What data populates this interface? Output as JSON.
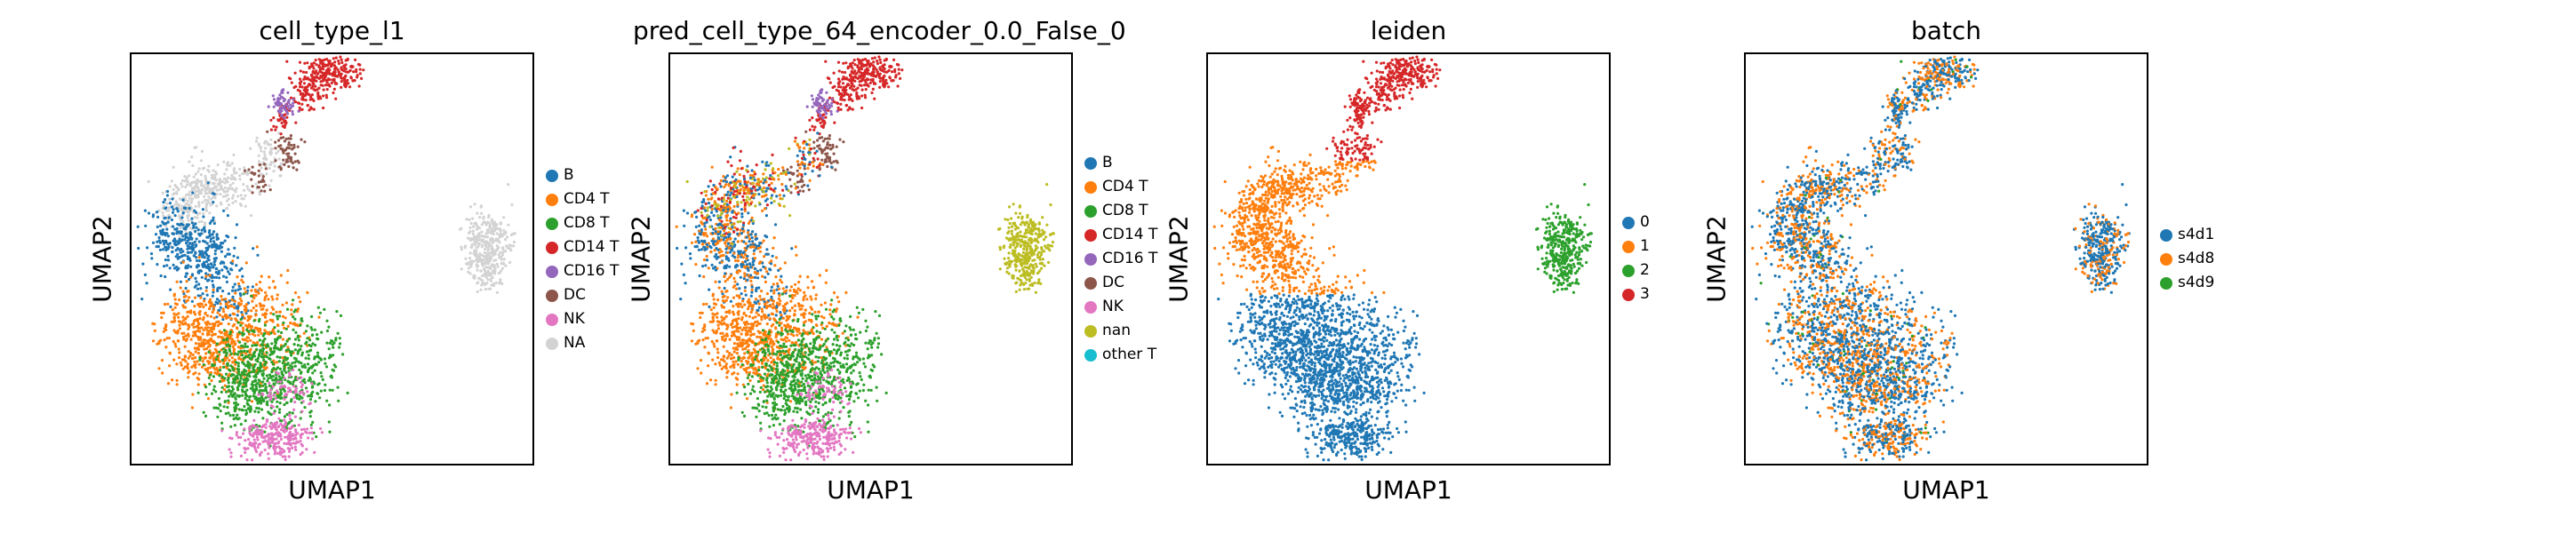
{
  "chart_data": [
    {
      "type": "scatter",
      "title": "cell_type_l1",
      "xlabel": "UMAP1",
      "ylabel": "UMAP2",
      "legend_position": "right",
      "series": [
        {
          "name": "B",
          "color": "#1f77b4"
        },
        {
          "name": "CD4 T",
          "color": "#ff7f0e"
        },
        {
          "name": "CD8 T",
          "color": "#2ca02c"
        },
        {
          "name": "CD14 T",
          "color": "#d62728"
        },
        {
          "name": "CD16 T",
          "color": "#9467bd"
        },
        {
          "name": "DC",
          "color": "#8c564b"
        },
        {
          "name": "NK",
          "color": "#e377c2"
        },
        {
          "name": "NA",
          "color": "#d3d3d3"
        }
      ]
    },
    {
      "type": "scatter",
      "title": "pred_cell_type_64_encoder_0.0_False_0",
      "xlabel": "UMAP1",
      "ylabel": "UMAP2",
      "legend_position": "right",
      "series": [
        {
          "name": "B",
          "color": "#1f77b4"
        },
        {
          "name": "CD4 T",
          "color": "#ff7f0e"
        },
        {
          "name": "CD8 T",
          "color": "#2ca02c"
        },
        {
          "name": "CD14 T",
          "color": "#d62728"
        },
        {
          "name": "CD16 T",
          "color": "#9467bd"
        },
        {
          "name": "DC",
          "color": "#8c564b"
        },
        {
          "name": "NK",
          "color": "#e377c2"
        },
        {
          "name": "nan",
          "color": "#bcbd22"
        },
        {
          "name": "other T",
          "color": "#17becf"
        }
      ]
    },
    {
      "type": "scatter",
      "title": "leiden",
      "xlabel": "UMAP1",
      "ylabel": "UMAP2",
      "legend_position": "right",
      "series": [
        {
          "name": "0",
          "color": "#1f77b4"
        },
        {
          "name": "1",
          "color": "#ff7f0e"
        },
        {
          "name": "2",
          "color": "#2ca02c"
        },
        {
          "name": "3",
          "color": "#d62728"
        }
      ]
    },
    {
      "type": "scatter",
      "title": "batch",
      "xlabel": "UMAP1",
      "ylabel": "UMAP2",
      "legend_position": "right",
      "series": [
        {
          "name": "s4d1",
          "color": "#1f77b4"
        },
        {
          "name": "s4d8",
          "color": "#ff7f0e"
        },
        {
          "name": "s4d9",
          "color": "#2ca02c"
        }
      ]
    }
  ]
}
